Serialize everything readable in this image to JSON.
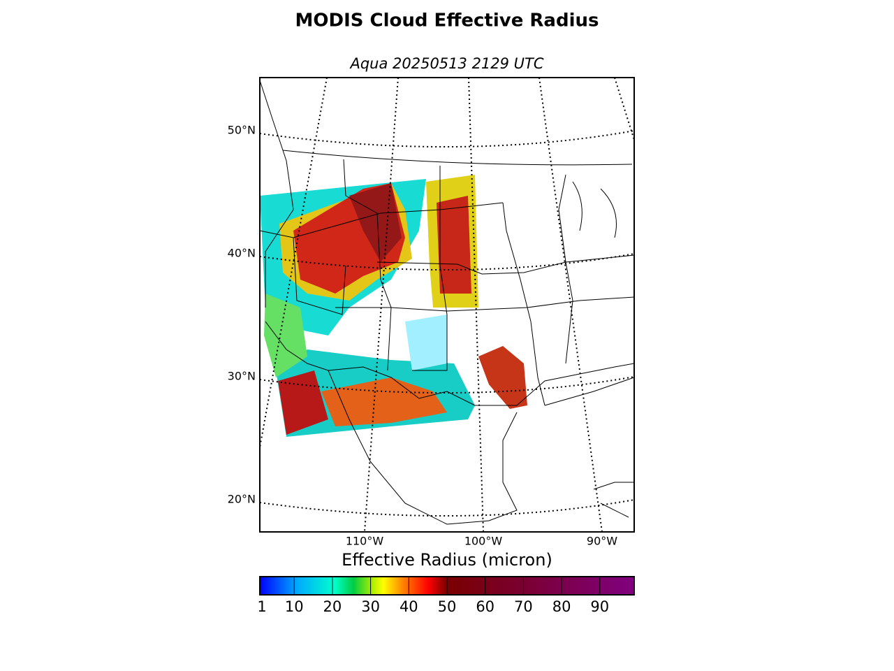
{
  "title": "MODIS Cloud Effective Radius",
  "subtitle": "Aqua 20250513 2129 UTC",
  "map": {
    "parallels": [
      {
        "value": 50,
        "label": "50°N"
      },
      {
        "value": 40,
        "label": "40°N"
      },
      {
        "value": 30,
        "label": "30°N"
      },
      {
        "value": 20,
        "label": "20°N"
      }
    ],
    "meridians": [
      {
        "value": -110,
        "label": "110°W"
      },
      {
        "value": -100,
        "label": "100°W"
      },
      {
        "value": -90,
        "label": "90°W"
      }
    ]
  },
  "colorbar": {
    "label": "Effective Radius (micron)",
    "clim": [
      1,
      99
    ],
    "ticks": [
      1,
      10,
      20,
      30,
      40,
      50,
      60,
      70,
      80,
      90
    ]
  }
}
